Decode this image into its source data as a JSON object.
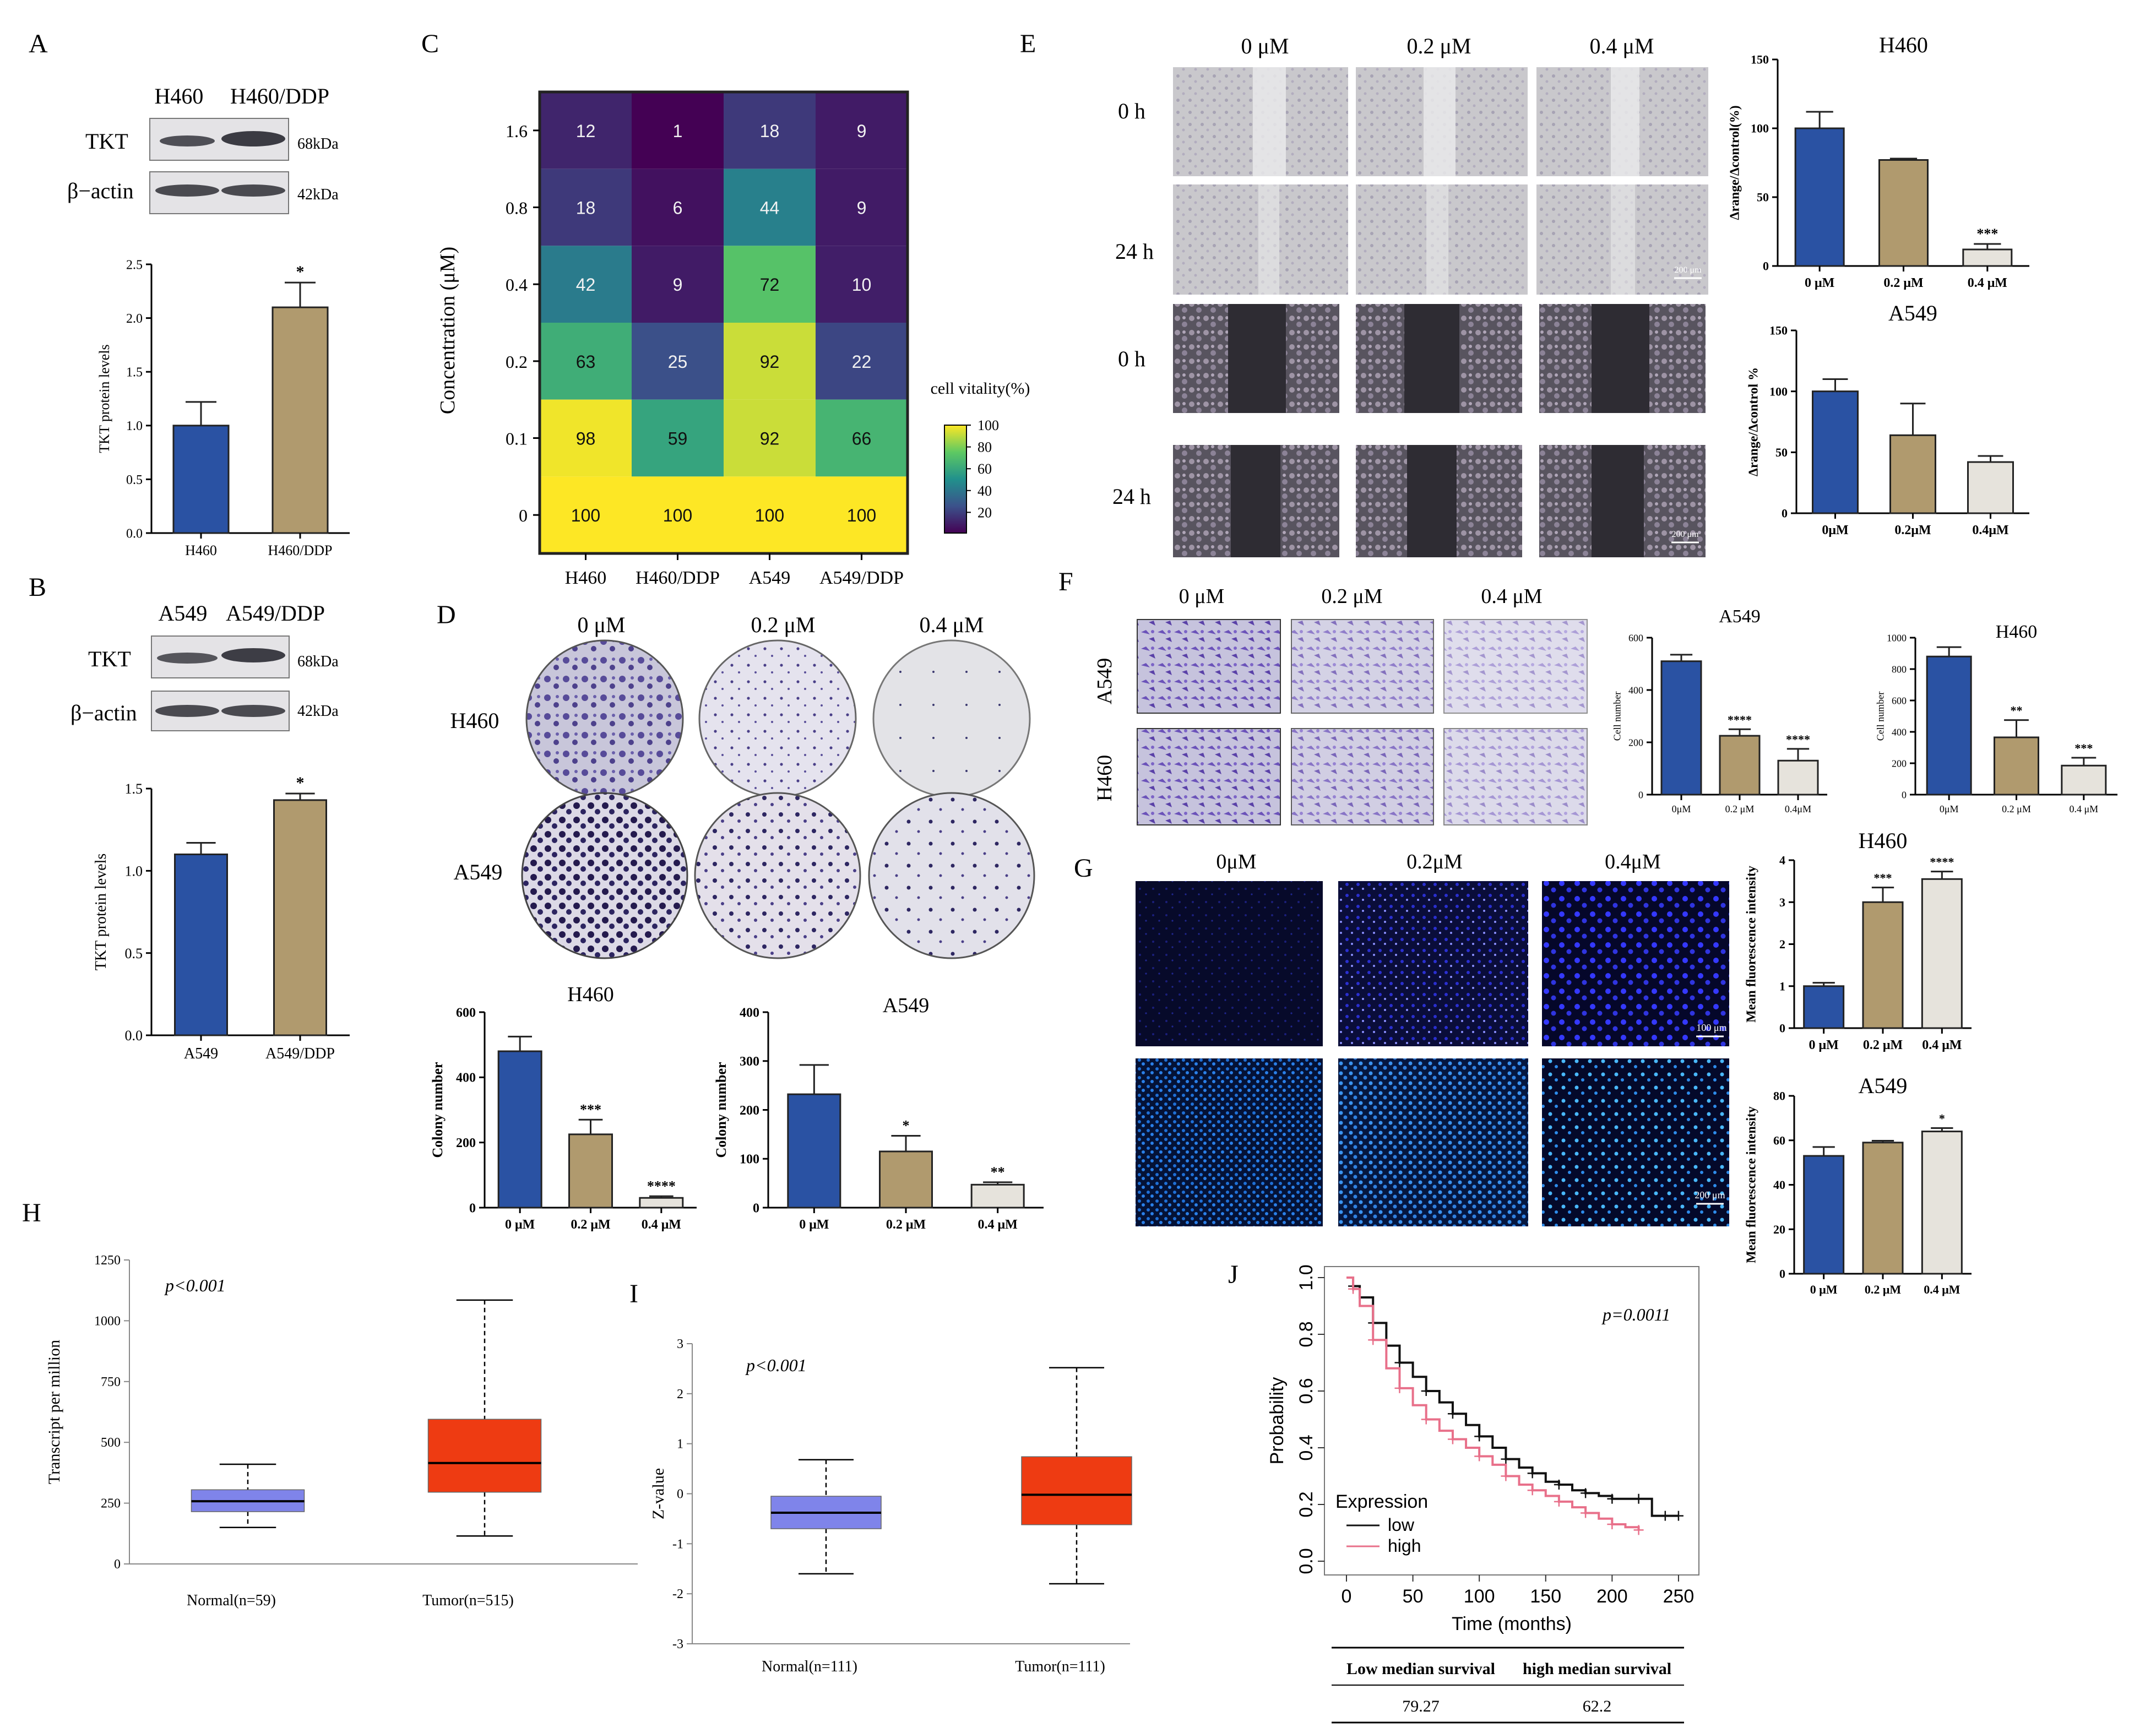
{
  "panel_letters": {
    "A": "A",
    "B": "B",
    "C": "C",
    "D": "D",
    "E": "E",
    "F": "F",
    "G": "G",
    "H": "H",
    "I": "I",
    "J": "J"
  },
  "colors": {
    "blue": "#2a52a3",
    "tan": "#b09a6e",
    "grey": "#e6e3dc",
    "gridBorder": "#222222",
    "red": "#ee3b12",
    "lavender": "#7f84ea",
    "kmLow": "#111111",
    "kmHigh": "#e8708a"
  },
  "blots": {
    "A": {
      "lanes": [
        "H460",
        "H460/DDP"
      ],
      "rows": [
        {
          "label": "TKT",
          "kda": "68kDa"
        },
        {
          "label": "β−actin",
          "kda": "42kDa"
        }
      ]
    },
    "B": {
      "lanes": [
        "A549",
        "A549/DDP"
      ],
      "rows": [
        {
          "label": "TKT",
          "kda": "68kDa"
        },
        {
          "label": "β−actin",
          "kda": "42kDa"
        }
      ]
    }
  },
  "micro": {
    "E": {
      "cols": [
        "0 μM",
        "0.2 μM",
        "0.4 μM"
      ],
      "rows": [
        "0 h",
        "24 h",
        "0 h",
        "24 h"
      ],
      "scale1": "200 μm",
      "scale2": "200 μm"
    },
    "D": {
      "cols": [
        "0 μM",
        "0.2 μM",
        "0.4 μM"
      ],
      "rows": [
        "H460",
        "A549"
      ]
    },
    "F": {
      "cols": [
        "0 μM",
        "0.2 μM",
        "0.4 μM"
      ],
      "rows": [
        "A549",
        "H460"
      ]
    },
    "G": {
      "cols": [
        "0μM",
        "0.2μM",
        "0.4μM"
      ],
      "scale1": "100 μm",
      "scale2": "200 μm"
    }
  },
  "km_table": {
    "headers": [
      "Low median survival",
      "high median survival"
    ],
    "values": [
      "79.27",
      "62.2"
    ]
  },
  "chart_data": [
    {
      "id": "A_bar",
      "type": "bar",
      "categories": [
        "H460",
        "H460/DDP"
      ],
      "values": [
        1.0,
        2.1
      ],
      "errors": [
        0.22,
        0.23
      ],
      "sig": [
        "",
        "*"
      ],
      "ylabel": "TKT protein levels",
      "ylim": [
        0,
        2.5
      ],
      "ticks": [
        "0.0",
        "0.5",
        "1.0",
        "1.5",
        "2.0",
        "2.5"
      ],
      "colors": [
        "#2a52a3",
        "#b09a6e"
      ]
    },
    {
      "id": "B_bar",
      "type": "bar",
      "categories": [
        "A549",
        "A549/DDP"
      ],
      "values": [
        1.1,
        1.43
      ],
      "errors": [
        0.07,
        0.04
      ],
      "sig": [
        "",
        "*"
      ],
      "ylabel": "TKT protein levels",
      "ylim": [
        0,
        1.5
      ],
      "ticks": [
        "0.0",
        "0.5",
        "1.0",
        "1.5"
      ],
      "colors": [
        "#2a52a3",
        "#b09a6e"
      ]
    },
    {
      "id": "C_heat",
      "type": "heatmap",
      "x": [
        "H460",
        "H460/DDP",
        "A549",
        "A549/DDP"
      ],
      "y": [
        "1.6",
        "0.8",
        "0.4",
        "0.2",
        "0.1",
        "0"
      ],
      "values": [
        [
          12,
          1,
          18,
          9
        ],
        [
          18,
          6,
          44,
          9
        ],
        [
          42,
          9,
          72,
          10
        ],
        [
          63,
          25,
          92,
          22
        ],
        [
          98,
          59,
          92,
          66
        ],
        [
          100,
          100,
          100,
          100
        ]
      ],
      "ylabel": "Concentration (μM)",
      "legend_title": "cell vitality(%)",
      "legend_ticks": [
        "100",
        "80",
        "60",
        "40",
        "20"
      ]
    },
    {
      "id": "D_H460",
      "type": "bar",
      "title": "H460",
      "categories": [
        "0  μM",
        "0.2  μM",
        "0.4  μM"
      ],
      "values": [
        480,
        225,
        30
      ],
      "errors": [
        45,
        45,
        5
      ],
      "sig": [
        "",
        "***",
        "****"
      ],
      "ylabel": "Colony number",
      "ylim": [
        0,
        600
      ],
      "ticks": [
        "0",
        "200",
        "400",
        "600"
      ],
      "colors": [
        "#2a52a3",
        "#b09a6e",
        "#e6e3dc"
      ]
    },
    {
      "id": "D_A549",
      "type": "bar",
      "title": "A549",
      "categories": [
        "0  μM",
        "0.2  μM",
        "0.4  μM"
      ],
      "values": [
        232,
        115,
        47
      ],
      "errors": [
        60,
        32,
        5
      ],
      "sig": [
        "",
        "*",
        "**"
      ],
      "ylabel": "Colony number",
      "ylim": [
        0,
        400
      ],
      "ticks": [
        "0",
        "100",
        "200",
        "300",
        "400"
      ],
      "colors": [
        "#2a52a3",
        "#b09a6e",
        "#e6e3dc"
      ]
    },
    {
      "id": "E_H460",
      "type": "bar",
      "title": "H460",
      "categories": [
        "0 μM",
        "0.2 μM",
        "0.4 μM"
      ],
      "values": [
        100,
        77,
        12
      ],
      "errors": [
        12,
        1,
        4
      ],
      "sig": [
        "",
        "",
        "***"
      ],
      "ylabel": "Δrange/Δcontrol(%)",
      "ylim": [
        0,
        150
      ],
      "ticks": [
        "0",
        "50",
        "100",
        "150"
      ],
      "colors": [
        "#2a52a3",
        "#b09a6e",
        "#e6e3dc"
      ]
    },
    {
      "id": "E_A549",
      "type": "bar",
      "title": "A549",
      "categories": [
        "0μM",
        "0.2μM",
        "0.4μM"
      ],
      "values": [
        100,
        64,
        42
      ],
      "errors": [
        10,
        26,
        5
      ],
      "sig": [
        "",
        "",
        ""
      ],
      "ylabel": "Δrange/Δcontrol %",
      "ylim": [
        0,
        150
      ],
      "ticks": [
        "0",
        "50",
        "100",
        "150"
      ],
      "colors": [
        "#2a52a3",
        "#b09a6e",
        "#e6e3dc"
      ]
    },
    {
      "id": "F_A549",
      "type": "bar",
      "title": "A549",
      "categories": [
        "0μM",
        "0.2 μM",
        "0.4μM"
      ],
      "values": [
        510,
        225,
        130
      ],
      "errors": [
        25,
        25,
        45
      ],
      "sig": [
        "",
        "****",
        "****"
      ],
      "ylabel": "Cell number",
      "ylim": [
        0,
        600
      ],
      "ticks": [
        "0",
        "200",
        "400",
        "600"
      ],
      "colors": [
        "#2a52a3",
        "#b09a6e",
        "#e6e3dc"
      ]
    },
    {
      "id": "F_H460",
      "type": "bar",
      "title": "H460",
      "categories": [
        "0μM",
        "0.2 μM",
        "0.4 μM"
      ],
      "values": [
        880,
        365,
        185
      ],
      "errors": [
        60,
        110,
        50
      ],
      "sig": [
        "",
        "**",
        "***"
      ],
      "ylabel": "Cell number",
      "ylim": [
        0,
        1000
      ],
      "ticks": [
        "0",
        "200",
        "400",
        "600",
        "800",
        "1000"
      ],
      "colors": [
        "#2a52a3",
        "#b09a6e",
        "#e6e3dc"
      ]
    },
    {
      "id": "G_H460",
      "type": "bar",
      "title": "H460",
      "categories": [
        "0 μM",
        "0.2 μM",
        "0.4 μM"
      ],
      "values": [
        1.0,
        3.0,
        3.55
      ],
      "errors": [
        0.08,
        0.35,
        0.18
      ],
      "sig": [
        "",
        "***",
        "****"
      ],
      "ylabel": "Mean fluorescence intensity",
      "ylim": [
        0,
        4
      ],
      "ticks": [
        "0",
        "1",
        "2",
        "3",
        "4"
      ],
      "colors": [
        "#2a52a3",
        "#b09a6e",
        "#e6e3dc"
      ]
    },
    {
      "id": "G_A549",
      "type": "bar",
      "title": "A549",
      "categories": [
        "0 μM",
        "0.2 μM",
        "0.4 μM"
      ],
      "values": [
        53,
        59,
        64
      ],
      "errors": [
        4,
        0.8,
        1.5
      ],
      "sig": [
        "",
        "",
        "*"
      ],
      "ylabel": "Mean fluorescence intensity",
      "ylim": [
        0,
        80
      ],
      "ticks": [
        "0",
        "20",
        "40",
        "60",
        "80"
      ],
      "colors": [
        "#2a52a3",
        "#b09a6e",
        "#e6e3dc"
      ]
    },
    {
      "id": "H_box",
      "type": "box",
      "annotation": "p<0.001",
      "ylabel": "Transcript per million",
      "ylim": [
        0,
        1250
      ],
      "ticks": [
        "0",
        "250",
        "500",
        "750",
        "1000",
        "1250"
      ],
      "categories": [
        "Normal(n=59)",
        "Tumor(n=515)"
      ],
      "boxes": [
        {
          "min": 150,
          "q1": 215,
          "median": 258,
          "q3": 305,
          "max": 410,
          "color": "#7f84ea"
        },
        {
          "min": 115,
          "q1": 295,
          "median": 415,
          "q3": 595,
          "max": 1085,
          "color": "#ee3b12"
        }
      ]
    },
    {
      "id": "I_box",
      "type": "box",
      "annotation": "p<0.001",
      "ylabel": "Z-value",
      "ylim": [
        -3,
        3
      ],
      "ticks": [
        "-3",
        "-2",
        "-1",
        "0",
        "1",
        "2",
        "3"
      ],
      "categories": [
        "Normal(n=111)",
        "Tumor(n=111)"
      ],
      "boxes": [
        {
          "min": -1.6,
          "q1": -0.7,
          "median": -0.38,
          "q3": -0.05,
          "max": 0.68,
          "color": "#7f84ea"
        },
        {
          "min": -1.8,
          "q1": -0.62,
          "median": -0.02,
          "q3": 0.74,
          "max": 2.52,
          "color": "#ee3b12"
        }
      ]
    },
    {
      "id": "J_km",
      "type": "line",
      "annotation": "p=0.0011",
      "xlabel": "Time (months)",
      "ylabel": "Probability",
      "xlim": [
        0,
        255
      ],
      "ylim": [
        0,
        1
      ],
      "xticks": [
        "0",
        "50",
        "100",
        "150",
        "200",
        "250"
      ],
      "yticks": [
        "0.0",
        "0.2",
        "0.4",
        "0.6",
        "0.8",
        "1.0"
      ],
      "legend_title": "Expression",
      "series": [
        {
          "name": "low",
          "color": "#111111",
          "x": [
            0,
            5,
            10,
            20,
            30,
            40,
            50,
            60,
            70,
            80,
            90,
            100,
            110,
            120,
            130,
            140,
            150,
            160,
            170,
            180,
            190,
            200,
            210,
            220,
            230,
            240,
            250
          ],
          "y": [
            1.0,
            0.97,
            0.93,
            0.84,
            0.76,
            0.7,
            0.65,
            0.6,
            0.56,
            0.52,
            0.48,
            0.44,
            0.4,
            0.36,
            0.33,
            0.31,
            0.28,
            0.27,
            0.25,
            0.24,
            0.23,
            0.22,
            0.22,
            0.22,
            0.16,
            0.16,
            0.16
          ]
        },
        {
          "name": "high",
          "color": "#e8708a",
          "x": [
            0,
            5,
            10,
            20,
            30,
            40,
            50,
            60,
            70,
            80,
            90,
            100,
            110,
            120,
            130,
            140,
            150,
            160,
            170,
            180,
            190,
            200,
            210,
            220
          ],
          "y": [
            1.0,
            0.96,
            0.9,
            0.78,
            0.68,
            0.61,
            0.55,
            0.5,
            0.46,
            0.43,
            0.4,
            0.37,
            0.34,
            0.3,
            0.27,
            0.25,
            0.23,
            0.21,
            0.19,
            0.17,
            0.15,
            0.13,
            0.12,
            0.11
          ]
        }
      ]
    }
  ]
}
